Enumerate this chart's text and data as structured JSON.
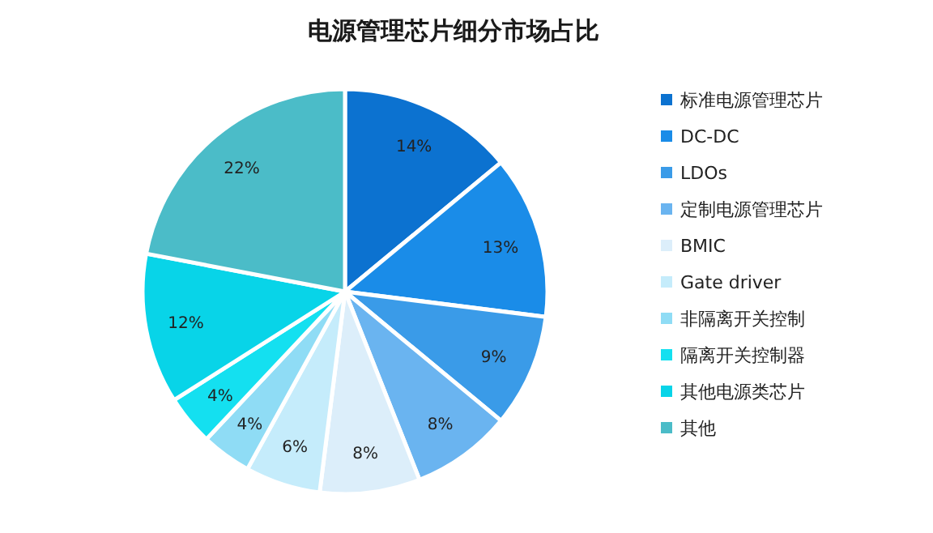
{
  "chart_data": {
    "type": "pie",
    "title": "电源管理芯片细分市场占比",
    "categories": [
      "标准电源管理芯片",
      "DC-DC",
      "LDOs",
      "定制电源管理芯片",
      "BMIC",
      "Gate driver",
      "非隔离开关控制",
      "隔离开关控制器",
      "其他电源类芯片",
      "其他"
    ],
    "values": [
      14,
      13,
      9,
      8,
      8,
      6,
      4,
      4,
      12,
      22
    ],
    "colors": [
      "#0c72d0",
      "#1a8ce8",
      "#3a9be8",
      "#6ab4f0",
      "#dceefa",
      "#c5ecfb",
      "#8fdcf5",
      "#14e0f0",
      "#08d4e8",
      "#4bbcc8"
    ],
    "value_labels": [
      "14%",
      "13%",
      "9%",
      "8%",
      "8%",
      "6%",
      "4%",
      "4%",
      "12%",
      "22%"
    ],
    "legend": "right"
  }
}
